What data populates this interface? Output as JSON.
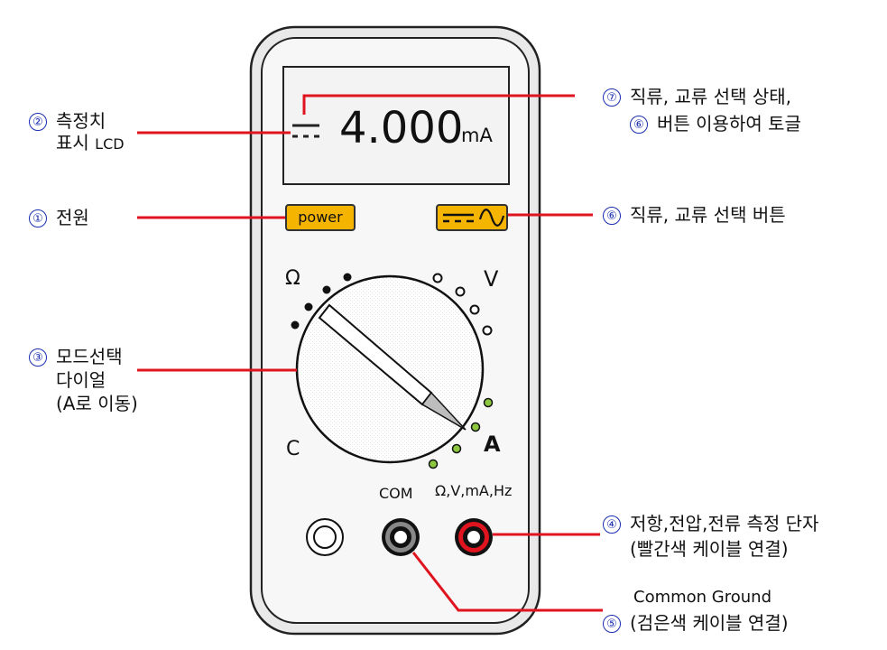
{
  "display": {
    "reading": "4.000",
    "unit": "mA",
    "dc_symbol": "dc-symbol"
  },
  "buttons": {
    "power_label": "power",
    "acdc_icon": "dc-ac-toggle-icon"
  },
  "dial": {
    "label_ohm": "Ω",
    "label_volt": "V",
    "label_cap": "C",
    "label_amp": "A"
  },
  "terminals": {
    "com_label": "COM",
    "main_label": "Ω,V,mA,Hz"
  },
  "callouts": {
    "c1": {
      "num": "①",
      "text": "전원"
    },
    "c2": {
      "num": "②",
      "line1": "측정치",
      "line2a": "표시 ",
      "line2b": "LCD"
    },
    "c3": {
      "num": "③",
      "line1": "모드선택",
      "line2": "다이얼",
      "line3": "(A로 이동)"
    },
    "c4": {
      "num": "④",
      "line1": "저항,전압,전류 측정 단자",
      "line2": "(빨간색 케이블 연결)"
    },
    "c5": {
      "num": "⑤",
      "line1": "Common Ground",
      "line2": "(검은색 케이블 연결)"
    },
    "c6": {
      "num": "⑥",
      "text": "직류, 교류 선택 버튼"
    },
    "c7": {
      "num": "⑦",
      "line1": "직류, 교류 선택 상태,",
      "line2_num": "⑥",
      "line2": "버튼 이용하여 토글"
    }
  },
  "colors": {
    "accent": "#f5b400",
    "leader": "#e0141e",
    "number": "#1a2fb0",
    "terminal_red": "#e0141e",
    "dot_green": "#8dc63f"
  }
}
